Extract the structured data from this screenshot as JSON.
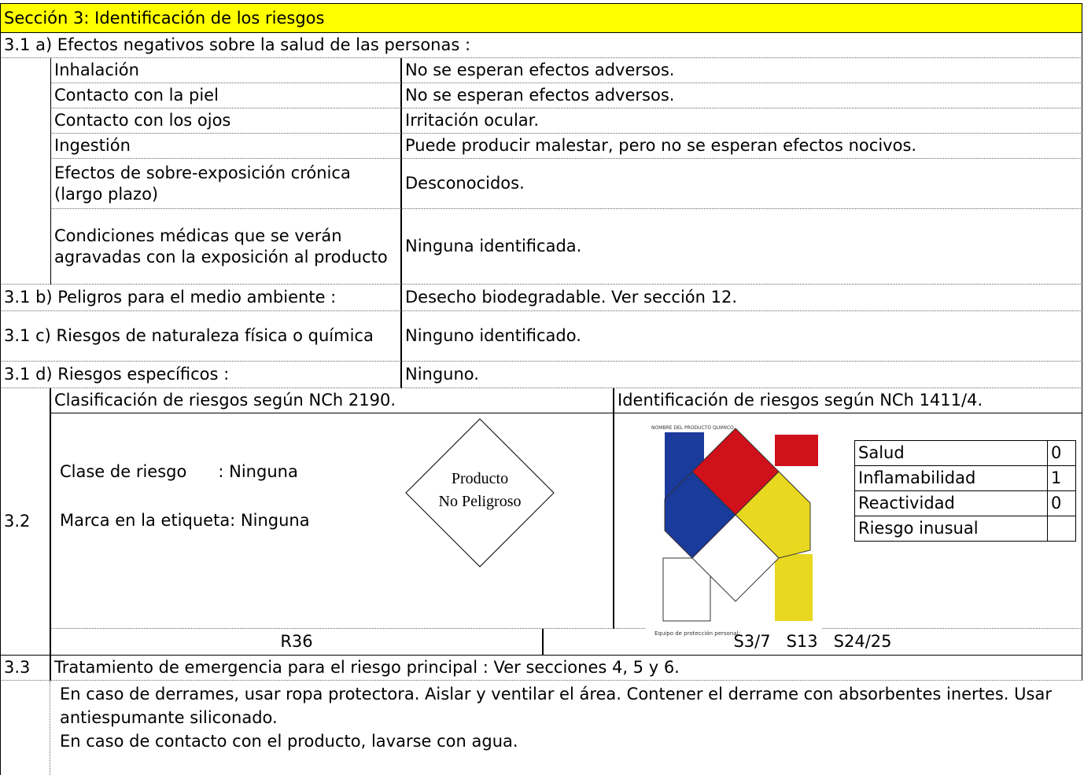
{
  "section_title": "Sección 3: Identificación de los riesgos",
  "health": {
    "heading": "3.1 a) Efectos negativos sobre la salud de las personas :",
    "rows": [
      [
        "Inhalación",
        "No se esperan efectos adversos."
      ],
      [
        "Contacto con la piel",
        "No se esperan efectos adversos."
      ],
      [
        "Contacto con los ojos",
        "Irritación ocular."
      ],
      [
        "Ingestión",
        "Puede producir malestar, pero no se esperan efectos nocivos."
      ],
      [
        "Efectos de sobre-exposición crónica (largo plazo)",
        "Desconocidos."
      ],
      [
        "Condiciones médicas que se verán agravadas con la exposición al producto",
        "Ninguna identificada."
      ]
    ]
  },
  "other_risks": [
    [
      "3.1 b) Peligros para el medio ambiente :",
      "Desecho biodegradable. Ver sección 12."
    ],
    [
      "3.1 c) Riesgos de naturaleza física o química",
      "Ninguno identificado."
    ],
    [
      "3.1 d) Riesgos específicos :",
      "Ninguno."
    ]
  ],
  "classification": {
    "number": "3.2",
    "nch2190_heading": "Clasificación de riesgos según NCh 2190.",
    "risk_class": "Clase de riesgo      : Ninguna",
    "label_mark": "Marca en la etiqueta: Ninguna",
    "diamond": [
      "Producto",
      "No Peligroso"
    ],
    "nch1411_heading": "Identificación de riesgos según NCh 1411/4.",
    "nfpa_image": {
      "product_name": "NOMBRE DEL PRODUCTO QUIMICO",
      "ppe": "Equipo de protección personal:"
    },
    "nfpa_table": [
      [
        "Salud",
        "0"
      ],
      [
        "Inflamabilidad",
        "1"
      ],
      [
        "Reactividad",
        "0"
      ],
      [
        "Riesgo inusual"
      ]
    ],
    "r_phrases": "R36",
    "s_phrases": "S3/7   S13   S24/25"
  },
  "emergency": {
    "number": "3.3",
    "heading": "Tratamiento de emergencia para el riesgo principal :  Ver secciones 4, 5 y 6.",
    "paragraphs": [
      "En caso de derrames, usar ropa protectora. Aislar y ventilar el área. Contener el derrame con absorbentes inertes. Usar antiespumante siliconado.",
      "En caso de contacto con el producto, lavarse con agua."
    ]
  }
}
